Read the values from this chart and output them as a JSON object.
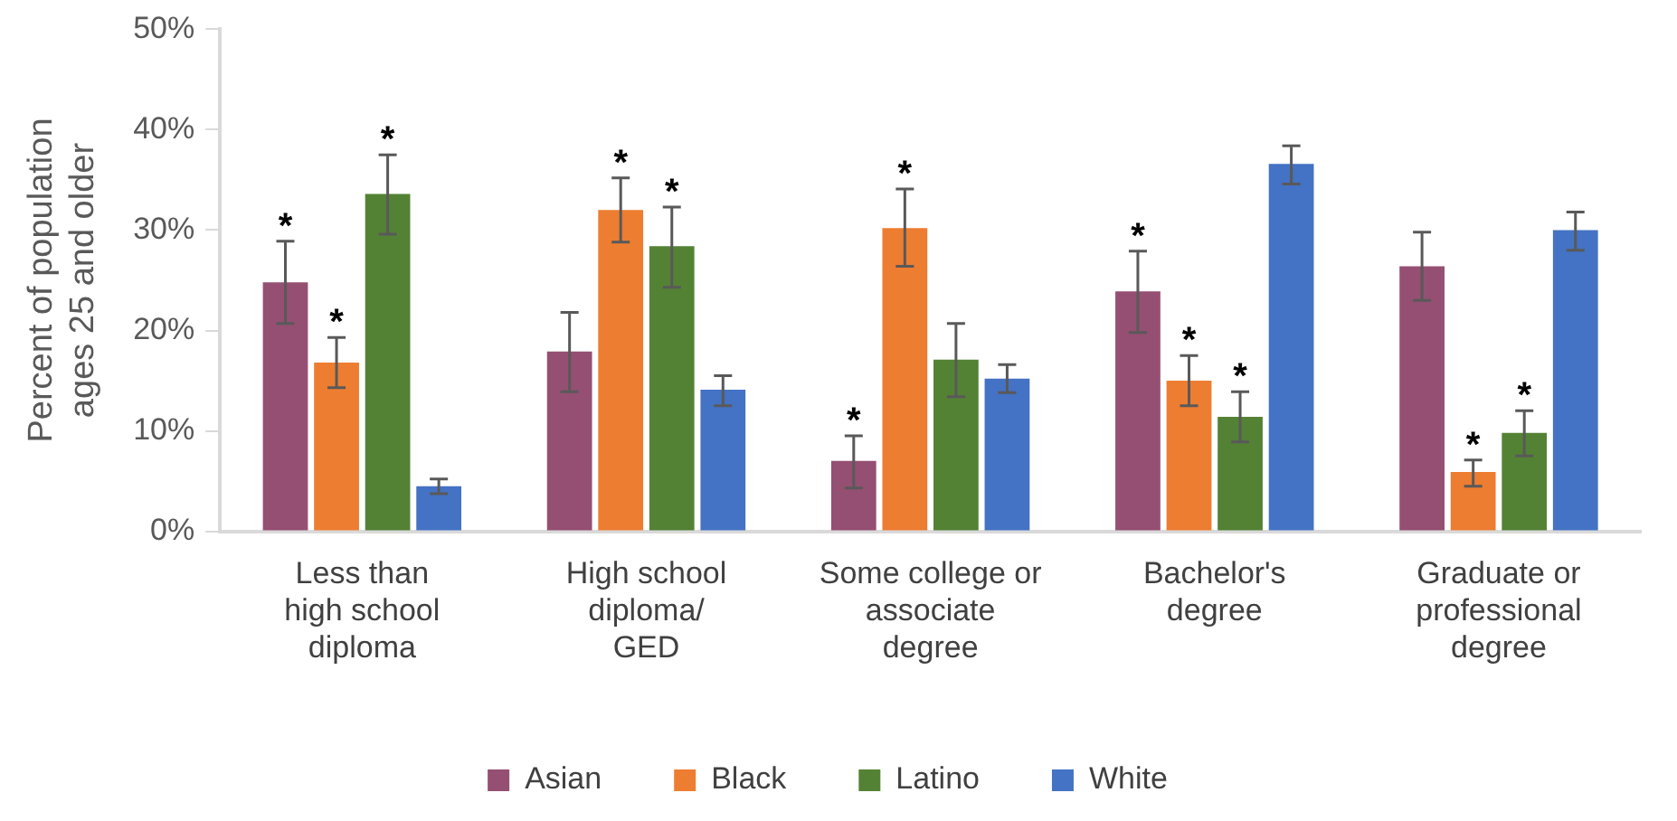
{
  "chart_data": {
    "type": "bar",
    "ylabel": "Percent of population\nages 25 and older",
    "categories": [
      "Less than\nhigh school\ndiploma",
      "High school\ndiploma/\nGED",
      "Some college or\nassociate\ndegree",
      "Bachelor's\ndegree",
      "Graduate or\nprofessional\ndegree"
    ],
    "series": [
      {
        "name": "Asian",
        "color": "#954f72",
        "values": [
          24.8,
          17.9,
          7,
          23.9,
          26.4
        ],
        "errors": [
          [
            20.7,
            28.9
          ],
          [
            13.9,
            21.8
          ],
          [
            4.3,
            9.5
          ],
          [
            19.8,
            27.9
          ],
          [
            23,
            29.8
          ]
        ],
        "value_labels": [
          "*",
          null,
          "*",
          "*",
          null
        ]
      },
      {
        "name": "Black",
        "color": "#ed7d31",
        "values": [
          16.8,
          32,
          30.2,
          15,
          5.9
        ],
        "errors": [
          [
            14.3,
            19.3
          ],
          [
            28.8,
            35.2
          ],
          [
            26.4,
            34.1
          ],
          [
            12.5,
            17.5
          ],
          [
            4.5,
            7.1
          ]
        ],
        "value_labels": [
          "*",
          "*",
          "*",
          "*",
          "*"
        ]
      },
      {
        "name": "Latino",
        "color": "#548235",
        "values": [
          33.6,
          28.4,
          17.1,
          11.4,
          9.8
        ],
        "errors": [
          [
            29.6,
            37.5
          ],
          [
            24.3,
            32.3
          ],
          [
            13.4,
            20.7
          ],
          [
            8.9,
            13.9
          ],
          [
            7.5,
            12
          ]
        ],
        "value_labels": [
          "*",
          "*",
          null,
          "*",
          "*"
        ]
      },
      {
        "name": "White",
        "color": "#4472c4",
        "values": [
          4.5,
          14.1,
          15.2,
          36.6,
          30
        ],
        "errors": [
          [
            3.75,
            5.2
          ],
          [
            12.5,
            15.5
          ],
          [
            13.8,
            16.6
          ],
          [
            34.6,
            38.4
          ],
          [
            28,
            31.8
          ]
        ],
        "value_labels": [
          null,
          null,
          null,
          null,
          null
        ]
      }
    ],
    "ylim": [
      0,
      50
    ],
    "yticks": [
      {
        "value": 0,
        "label": "0%"
      },
      {
        "value": 10,
        "label": "10%"
      },
      {
        "value": 20,
        "label": "20%"
      },
      {
        "value": 30,
        "label": "30%"
      },
      {
        "value": 40,
        "label": "40%"
      },
      {
        "value": 50,
        "label": "50%"
      }
    ],
    "grid": false,
    "legend": "bottom"
  }
}
